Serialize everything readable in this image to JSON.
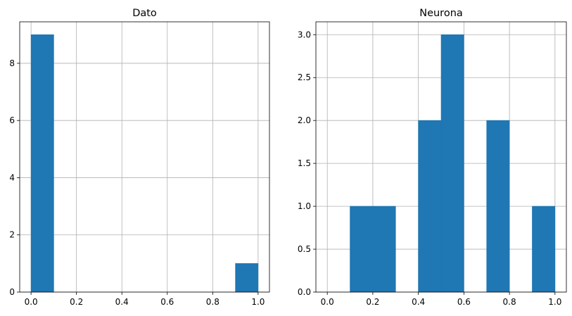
{
  "chart_data": [
    {
      "type": "bar",
      "title": "Dato",
      "xlabel": "",
      "ylabel": "",
      "xlim": [
        -0.05,
        1.05
      ],
      "ylim": [
        0,
        9.45
      ],
      "xticks": [
        0.0,
        0.2,
        0.4,
        0.6,
        0.8,
        1.0
      ],
      "xtick_labels": [
        "0.0",
        "0.2",
        "0.4",
        "0.6",
        "0.8",
        "1.0"
      ],
      "yticks": [
        0,
        2,
        4,
        6,
        8
      ],
      "ytick_labels": [
        "0",
        "2",
        "4",
        "6",
        "8"
      ],
      "bin_edges": [
        0.0,
        0.1,
        0.2,
        0.3,
        0.4,
        0.5,
        0.6,
        0.7,
        0.8,
        0.9,
        1.0
      ],
      "values": [
        9,
        0,
        0,
        0,
        0,
        0,
        0,
        0,
        0,
        1
      ],
      "grid": true,
      "color": "#1f77b4"
    },
    {
      "type": "bar",
      "title": "Neurona",
      "xlabel": "",
      "ylabel": "",
      "xlim": [
        -0.05,
        1.05
      ],
      "ylim": [
        0,
        3.15
      ],
      "xticks": [
        0.0,
        0.2,
        0.4,
        0.6,
        0.8,
        1.0
      ],
      "xtick_labels": [
        "0.0",
        "0.2",
        "0.4",
        "0.6",
        "0.8",
        "1.0"
      ],
      "yticks": [
        0.0,
        0.5,
        1.0,
        1.5,
        2.0,
        2.5,
        3.0
      ],
      "ytick_labels": [
        "0.0",
        "0.5",
        "1.0",
        "1.5",
        "2.0",
        "2.5",
        "3.0"
      ],
      "bin_edges": [
        0.1,
        0.2,
        0.3,
        0.4,
        0.5,
        0.6,
        0.7,
        0.8,
        0.9,
        1.0
      ],
      "values": [
        1,
        1,
        0,
        2,
        3,
        0,
        2,
        0,
        1
      ],
      "grid": true,
      "color": "#1f77b4"
    }
  ]
}
